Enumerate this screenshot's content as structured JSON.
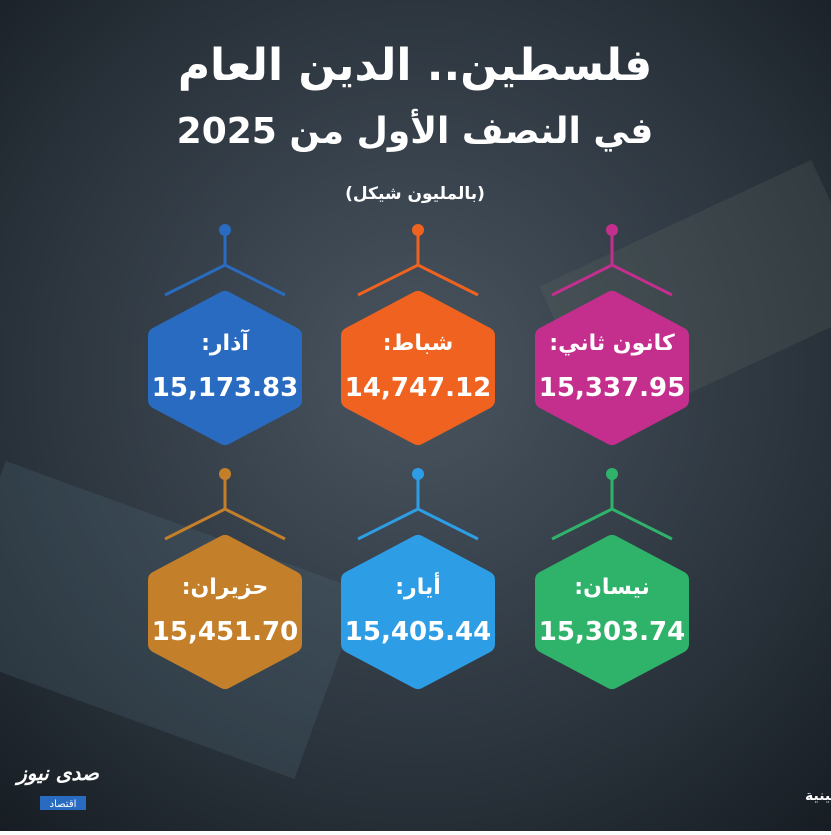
{
  "header": {
    "title": "فلسطين.. الدين العام",
    "subtitle": "في النصف الأول من 2025",
    "unit": "(بالمليون شيكل)"
  },
  "cards": [
    {
      "month": "كانون ثاني:",
      "value": "15,337.95",
      "color": "#c42f8e"
    },
    {
      "month": "شباط:",
      "value": "14,747.12",
      "color": "#f0621f"
    },
    {
      "month": "آذار:",
      "value": "15,173.83",
      "color": "#2a6bc2"
    },
    {
      "month": "نيسان:",
      "value": "15,303.74",
      "color": "#2fb36b"
    },
    {
      "month": "أيار:",
      "value": "15,405.44",
      "color": "#2d9ee6"
    },
    {
      "month": "حزيران:",
      "value": "15,451.70",
      "color": "#c47f2a"
    }
  ],
  "footer": {
    "source": "المصدر: وزارة المالية الفلسطينية",
    "logo": "صدى نيوز",
    "logo_sub": "اقتصاد"
  }
}
